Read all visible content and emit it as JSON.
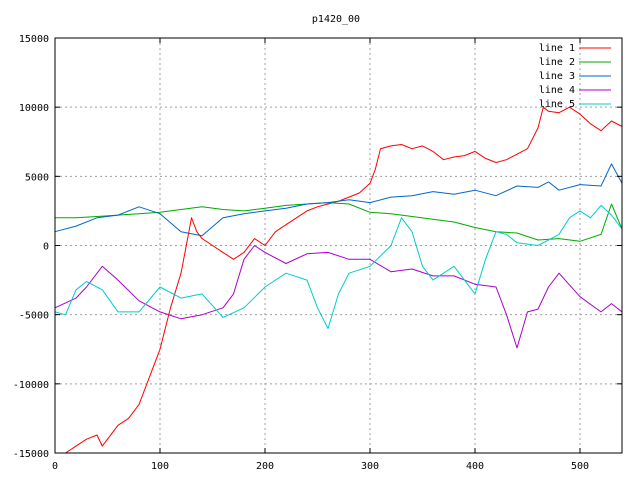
{
  "chart_data": {
    "type": "line",
    "title": "p1420_00",
    "xlabel": "",
    "ylabel": "",
    "xlim": [
      0,
      540
    ],
    "ylim": [
      -15000,
      15000
    ],
    "xticks": [
      0,
      100,
      200,
      300,
      400,
      500
    ],
    "yticks": [
      -15000,
      -10000,
      -5000,
      0,
      5000,
      10000,
      15000
    ],
    "grid": true,
    "legend_position": "top-right",
    "series": [
      {
        "name": "line 1",
        "color": "#ff0000",
        "x": [
          10,
          20,
          30,
          40,
          45,
          50,
          60,
          70,
          80,
          90,
          100,
          110,
          120,
          125,
          130,
          135,
          140,
          150,
          160,
          170,
          180,
          190,
          200,
          210,
          220,
          230,
          240,
          250,
          260,
          270,
          280,
          290,
          300,
          305,
          310,
          320,
          330,
          340,
          350,
          360,
          370,
          380,
          390,
          400,
          410,
          420,
          430,
          440,
          450,
          460,
          465,
          470,
          480,
          490,
          500,
          510,
          520,
          530,
          540
        ],
        "y": [
          -15000,
          -14500,
          -14000,
          -13700,
          -14500,
          -14000,
          -13000,
          -12500,
          -11500,
          -9500,
          -7500,
          -4500,
          -2000,
          0,
          2000,
          1000,
          500,
          0,
          -500,
          -1000,
          -500,
          500,
          0,
          1000,
          1500,
          2000,
          2500,
          2800,
          3000,
          3200,
          3500,
          3800,
          4500,
          5500,
          7000,
          7200,
          7300,
          7000,
          7200,
          6800,
          6200,
          6400,
          6500,
          6800,
          6300,
          6000,
          6200,
          6600,
          7000,
          8500,
          10000,
          9700,
          9600,
          10000,
          9500,
          8800,
          8300,
          9000,
          8600
        ]
      },
      {
        "name": "line 2",
        "color": "#00aa00",
        "x": [
          0,
          20,
          40,
          60,
          80,
          100,
          120,
          140,
          160,
          180,
          200,
          220,
          240,
          260,
          280,
          300,
          320,
          340,
          360,
          380,
          400,
          420,
          440,
          460,
          480,
          500,
          520,
          530,
          540
        ],
        "y": [
          2000,
          2000,
          2100,
          2200,
          2300,
          2400,
          2600,
          2800,
          2600,
          2500,
          2700,
          2900,
          3000,
          3100,
          3000,
          2400,
          2300,
          2100,
          1900,
          1700,
          1300,
          1000,
          900,
          400,
          500,
          300,
          800,
          3000,
          1200
        ]
      },
      {
        "name": "line 3",
        "color": "#0066cc",
        "x": [
          0,
          20,
          40,
          60,
          80,
          100,
          120,
          140,
          160,
          180,
          200,
          220,
          240,
          260,
          280,
          300,
          320,
          340,
          360,
          380,
          400,
          420,
          440,
          460,
          470,
          480,
          500,
          520,
          530,
          540
        ],
        "y": [
          1000,
          1400,
          2000,
          2200,
          2800,
          2300,
          1000,
          700,
          2000,
          2300,
          2500,
          2700,
          3000,
          3100,
          3300,
          3100,
          3500,
          3600,
          3900,
          3700,
          4000,
          3600,
          4300,
          4200,
          4600,
          4000,
          4400,
          4300,
          5900,
          4500
        ]
      },
      {
        "name": "line 4",
        "color": "#aa00cc",
        "x": [
          0,
          20,
          30,
          45,
          60,
          80,
          100,
          120,
          140,
          160,
          170,
          180,
          190,
          200,
          220,
          240,
          260,
          280,
          300,
          320,
          340,
          360,
          380,
          400,
          420,
          430,
          440,
          450,
          460,
          470,
          480,
          500,
          520,
          530,
          540
        ],
        "y": [
          -4500,
          -3800,
          -3000,
          -1500,
          -2500,
          -4000,
          -4800,
          -5300,
          -5000,
          -4500,
          -3500,
          -1000,
          0,
          -500,
          -1300,
          -600,
          -500,
          -1000,
          -1000,
          -1900,
          -1700,
          -2200,
          -2200,
          -2800,
          -3000,
          -5000,
          -7400,
          -4800,
          -4600,
          -3000,
          -2000,
          -3700,
          -4800,
          -4200,
          -4800
        ]
      },
      {
        "name": "line 5",
        "color": "#00cccc",
        "x": [
          0,
          10,
          20,
          30,
          45,
          60,
          80,
          100,
          120,
          140,
          160,
          180,
          200,
          220,
          240,
          250,
          260,
          270,
          280,
          300,
          320,
          330,
          340,
          350,
          360,
          370,
          380,
          390,
          400,
          410,
          420,
          430,
          440,
          460,
          480,
          490,
          500,
          510,
          520,
          530,
          540
        ],
        "y": [
          -4800,
          -5000,
          -3200,
          -2600,
          -3200,
          -4800,
          -4800,
          -3000,
          -3800,
          -3500,
          -5200,
          -4500,
          -3000,
          -2000,
          -2500,
          -4500,
          -6000,
          -3500,
          -2000,
          -1500,
          0,
          2000,
          1000,
          -1500,
          -2500,
          -2000,
          -1500,
          -2500,
          -3500,
          -1000,
          1000,
          800,
          200,
          0,
          800,
          2000,
          2500,
          2000,
          2900,
          2200,
          1200
        ]
      }
    ]
  }
}
